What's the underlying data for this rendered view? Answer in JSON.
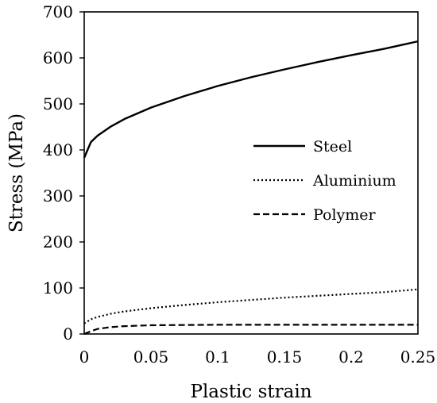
{
  "chart_data": {
    "type": "line",
    "title": "",
    "xlabel": "Plastic strain",
    "ylabel": "Stress (MPa)",
    "xlim": [
      0,
      0.25
    ],
    "ylim": [
      0,
      700
    ],
    "xticks": [
      0,
      0.05,
      0.1,
      0.15,
      0.2,
      0.25
    ],
    "xtick_labels": [
      "0",
      "0.05",
      "0.1",
      "0.15",
      "0.2",
      "0.25"
    ],
    "yticks": [
      0,
      100,
      200,
      300,
      400,
      500,
      600,
      700
    ],
    "ytick_labels": [
      "0",
      "100",
      "200",
      "300",
      "400",
      "500",
      "600",
      "700"
    ],
    "grid": false,
    "legend_position": "right",
    "x": [
      0,
      0.005,
      0.01,
      0.02,
      0.03,
      0.05,
      0.075,
      0.1,
      0.125,
      0.15,
      0.175,
      0.2,
      0.225,
      0.25
    ],
    "series": [
      {
        "name": "Steel",
        "style": "solid",
        "color": "#000000",
        "values": [
          383,
          417,
          431,
          451,
          467,
          492,
          517,
          539,
          558,
          575,
          591,
          606,
          620,
          636
        ]
      },
      {
        "name": "Aluminium",
        "style": "dotted",
        "color": "#000000",
        "values": [
          23,
          32,
          37,
          44,
          49,
          56,
          63,
          69,
          74,
          79,
          83,
          87,
          91,
          97
        ]
      },
      {
        "name": "Polymer",
        "style": "dashed",
        "color": "#000000",
        "values": [
          0,
          6,
          11,
          15,
          17,
          19,
          19.5,
          20,
          20,
          20,
          20,
          20,
          20,
          20
        ]
      }
    ]
  }
}
